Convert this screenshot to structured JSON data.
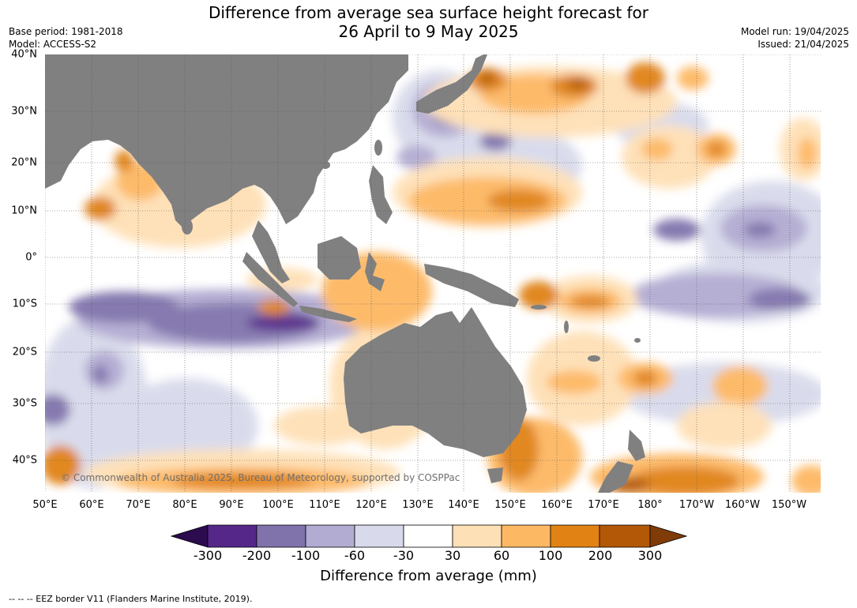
{
  "title_line1": "Difference from average sea surface height forecast for",
  "title_line2": "26 April to 9 May 2025",
  "meta_left": {
    "base_period": "Base period: 1981-2018",
    "model": "Model: ACCESS-S2"
  },
  "meta_right": {
    "model_run": "Model run: 19/04/2025",
    "issued": "Issued: 21/04/2025"
  },
  "map": {
    "lon_labels": [
      "50°E",
      "60°E",
      "70°E",
      "80°E",
      "90°E",
      "100°E",
      "110°E",
      "120°E",
      "130°E",
      "140°E",
      "150°E",
      "160°E",
      "170°E",
      "180°",
      "170°W",
      "160°W",
      "150°W"
    ],
    "lat_labels": [
      "40°N",
      "30°N",
      "20°N",
      "10°N",
      "0°",
      "10°S",
      "20°S",
      "30°S",
      "40°S"
    ],
    "copyright": "© Commonwealth of Australia 2025, Bureau of Meteorology, supported by COSPPac",
    "land_color": "#808080"
  },
  "colorbar": {
    "ticks": [
      "-300",
      "-200",
      "-100",
      "-60",
      "-30",
      "30",
      "60",
      "100",
      "200",
      "300"
    ],
    "colors": [
      "#2d0b4f",
      "#542788",
      "#8073ac",
      "#b2abd2",
      "#d8daeb",
      "#ffffff",
      "#fee0b6",
      "#fdb863",
      "#e08214",
      "#b35806",
      "#7f3b08"
    ],
    "label": "Difference from average (mm)"
  },
  "footer_note": "--  --  -- EEZ border V11 (Flanders Marine Institute, 2019)."
}
